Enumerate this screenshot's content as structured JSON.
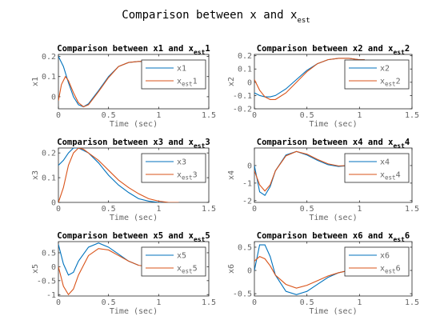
{
  "figure": {
    "suptitle": "Comparison between x and x",
    "suptitle_sub": "est",
    "colors": {
      "x": "#0072BD",
      "x_est": "#D95319",
      "axis": "#262626"
    }
  },
  "chart_data": [
    {
      "type": "line",
      "title": "Comparison between x1 and x",
      "title_sub": "est",
      "title_suffix": "1",
      "xlabel": "Time (sec)",
      "ylabel": "x1",
      "xlim": [
        0,
        1.5
      ],
      "ylim": [
        -0.06,
        0.21
      ],
      "xticks": [
        0,
        0.5,
        1,
        1.5
      ],
      "xtick_labels": [
        "0",
        "0.5",
        "1",
        "1.5"
      ],
      "yticks": [
        0,
        0.1,
        0.2
      ],
      "ytick_labels": [
        "0",
        "0.1",
        "0.2"
      ],
      "grid": false,
      "legend": {
        "location": "top-right",
        "entries": [
          {
            "text": "x1"
          },
          {
            "text": "x",
            "sub": "est",
            "suffix": "1"
          }
        ]
      },
      "series": [
        {
          "name": "x1",
          "x": [
            0,
            0.05,
            0.1,
            0.15,
            0.2,
            0.25,
            0.3,
            0.4,
            0.5,
            0.6,
            0.7,
            0.8,
            0.9,
            1.0,
            1.05
          ],
          "y": [
            0.2,
            0.15,
            0.07,
            0.0,
            -0.04,
            -0.05,
            -0.035,
            0.03,
            0.1,
            0.15,
            0.17,
            0.175,
            0.175,
            0.175,
            0.175
          ]
        },
        {
          "name": "x_est1",
          "x": [
            0,
            0.03,
            0.07,
            0.1,
            0.15,
            0.2,
            0.25,
            0.3,
            0.4,
            0.5,
            0.6,
            0.7,
            0.8,
            0.9,
            1.0,
            1.05
          ],
          "y": [
            -0.02,
            0.06,
            0.1,
            0.08,
            0.02,
            -0.03,
            -0.05,
            -0.04,
            0.025,
            0.095,
            0.15,
            0.17,
            0.175,
            0.175,
            0.175,
            0.175
          ]
        }
      ]
    },
    {
      "type": "line",
      "title": "Comparison between x2 and x",
      "title_sub": "est",
      "title_suffix": "2",
      "xlabel": "Time (sec)",
      "ylabel": "x2",
      "xlim": [
        0,
        1.5
      ],
      "ylim": [
        -0.2,
        0.21
      ],
      "xticks": [
        0,
        0.5,
        1,
        1.5
      ],
      "xtick_labels": [
        "0",
        "0.5",
        "1",
        "1.5"
      ],
      "yticks": [
        -0.2,
        -0.1,
        0,
        0.1,
        0.2
      ],
      "ytick_labels": [
        "-0.2",
        "-0.1",
        "0",
        "0.1",
        "0.2"
      ],
      "grid": false,
      "legend": {
        "location": "top-right",
        "entries": [
          {
            "text": "x2"
          },
          {
            "text": "x",
            "sub": "est",
            "suffix": "2"
          }
        ]
      },
      "series": [
        {
          "name": "x2",
          "x": [
            0,
            0.05,
            0.1,
            0.15,
            0.2,
            0.3,
            0.4,
            0.5,
            0.6,
            0.7,
            0.8,
            0.9,
            1.0,
            1.05
          ],
          "y": [
            -0.08,
            -0.1,
            -0.11,
            -0.11,
            -0.1,
            -0.05,
            0.02,
            0.09,
            0.14,
            0.17,
            0.18,
            0.18,
            0.17,
            0.17
          ]
        },
        {
          "name": "x_est2",
          "x": [
            0,
            0.05,
            0.1,
            0.15,
            0.2,
            0.3,
            0.4,
            0.5,
            0.6,
            0.7,
            0.8,
            0.9,
            1.0,
            1.05
          ],
          "y": [
            0.02,
            -0.06,
            -0.11,
            -0.13,
            -0.13,
            -0.08,
            0.0,
            0.08,
            0.14,
            0.17,
            0.18,
            0.18,
            0.17,
            0.17
          ]
        }
      ]
    },
    {
      "type": "line",
      "title": "Comparison between x3 and x",
      "title_sub": "est",
      "title_suffix": "3",
      "xlabel": "Time (sec)",
      "ylabel": "x3",
      "xlim": [
        0,
        1.5
      ],
      "ylim": [
        0,
        0.22
      ],
      "xticks": [
        0,
        0.5,
        1,
        1.5
      ],
      "xtick_labels": [
        "0",
        "0.5",
        "1",
        "1.5"
      ],
      "yticks": [
        0,
        0.1,
        0.2
      ],
      "ytick_labels": [
        "0",
        "0.1",
        "0.2"
      ],
      "grid": false,
      "legend": {
        "location": "top-right",
        "entries": [
          {
            "text": "x3"
          },
          {
            "text": "x",
            "sub": "est",
            "suffix": "3"
          }
        ]
      },
      "series": [
        {
          "name": "x3",
          "x": [
            0,
            0.05,
            0.1,
            0.15,
            0.2,
            0.3,
            0.4,
            0.5,
            0.6,
            0.7,
            0.8,
            0.9,
            1.0,
            1.1
          ],
          "y": [
            0.15,
            0.17,
            0.2,
            0.22,
            0.22,
            0.2,
            0.16,
            0.11,
            0.07,
            0.04,
            0.015,
            0.005,
            0.0,
            0.0
          ]
        },
        {
          "name": "x_est3",
          "x": [
            0,
            0.05,
            0.1,
            0.15,
            0.2,
            0.25,
            0.3,
            0.4,
            0.5,
            0.6,
            0.7,
            0.8,
            0.9,
            1.0,
            1.1,
            1.2
          ],
          "y": [
            0.0,
            0.06,
            0.15,
            0.2,
            0.22,
            0.215,
            0.2,
            0.17,
            0.13,
            0.09,
            0.06,
            0.035,
            0.015,
            0.005,
            0.0,
            0.0
          ]
        }
      ]
    },
    {
      "type": "line",
      "title": "Comparison between x4 and x",
      "title_sub": "est",
      "title_suffix": "4",
      "xlabel": "Time (sec)",
      "ylabel": "x4",
      "xlim": [
        0,
        1.5
      ],
      "ylim": [
        -2.1,
        1.0
      ],
      "xticks": [
        0,
        0.5,
        1,
        1.5
      ],
      "xtick_labels": [
        "0",
        "0.5",
        "1",
        "1.5"
      ],
      "yticks": [
        -2,
        -1,
        0
      ],
      "ytick_labels": [
        "-2",
        "-1",
        "0"
      ],
      "grid": false,
      "legend": {
        "location": "top-right",
        "entries": [
          {
            "text": "x4"
          },
          {
            "text": "x",
            "sub": "est",
            "suffix": "4"
          }
        ]
      },
      "series": [
        {
          "name": "x4",
          "x": [
            0,
            0.05,
            0.1,
            0.15,
            0.2,
            0.3,
            0.4,
            0.5,
            0.6,
            0.7,
            0.8,
            0.9,
            1.0,
            1.05
          ],
          "y": [
            0.0,
            -1.5,
            -1.7,
            -1.2,
            -0.3,
            0.6,
            0.8,
            0.6,
            0.3,
            0.05,
            -0.05,
            0.0,
            0.0,
            0.0
          ]
        },
        {
          "name": "x_est4",
          "x": [
            0,
            0.05,
            0.1,
            0.15,
            0.2,
            0.3,
            0.4,
            0.5,
            0.6,
            0.7,
            0.8,
            0.9,
            1.0,
            1.05
          ],
          "y": [
            -0.3,
            -1.1,
            -1.45,
            -1.1,
            -0.3,
            0.55,
            0.8,
            0.65,
            0.35,
            0.1,
            -0.02,
            0.0,
            0.0,
            0.0
          ]
        }
      ]
    },
    {
      "type": "line",
      "title": "Comparison between x5 and x",
      "title_sub": "est",
      "title_suffix": "5",
      "xlabel": "Time (sec)",
      "ylabel": "x5",
      "xlim": [
        0,
        1.5
      ],
      "ylim": [
        -1.05,
        0.9
      ],
      "xticks": [
        0,
        0.5,
        1,
        1.5
      ],
      "xtick_labels": [
        "0",
        "0.5",
        "1",
        "1.5"
      ],
      "yticks": [
        -1,
        -0.5,
        0,
        0.5
      ],
      "ytick_labels": [
        "-1",
        "-0.5",
        "0",
        "0.5"
      ],
      "grid": false,
      "legend": {
        "location": "top-right",
        "entries": [
          {
            "text": "x5"
          },
          {
            "text": "x",
            "sub": "est",
            "suffix": "5"
          }
        ]
      },
      "series": [
        {
          "name": "x5",
          "x": [
            0,
            0.05,
            0.1,
            0.15,
            0.2,
            0.3,
            0.4,
            0.5,
            0.6,
            0.7,
            0.8
          ],
          "y": [
            0.8,
            0.1,
            -0.3,
            -0.2,
            0.2,
            0.7,
            0.85,
            0.7,
            0.45,
            0.2,
            0.05
          ]
        },
        {
          "name": "x_est5",
          "x": [
            0,
            0.05,
            0.1,
            0.15,
            0.2,
            0.3,
            0.4,
            0.5,
            0.6,
            0.7,
            0.8,
            0.9,
            1.0,
            1.05
          ],
          "y": [
            0.0,
            -0.7,
            -1.0,
            -0.8,
            -0.3,
            0.4,
            0.65,
            0.6,
            0.4,
            0.2,
            0.05,
            0.0,
            0.0,
            0.0
          ]
        }
      ]
    },
    {
      "type": "line",
      "title": "Comparison between x6 and x",
      "title_sub": "est",
      "title_suffix": "6",
      "xlabel": "Time (sec)",
      "ylabel": "x6",
      "xlim": [
        0,
        1.5
      ],
      "ylim": [
        -0.55,
        0.62
      ],
      "xticks": [
        0,
        0.5,
        1,
        1.5
      ],
      "xtick_labels": [
        "0",
        "0.5",
        "1",
        "1.5"
      ],
      "yticks": [
        -0.5,
        0,
        0.5
      ],
      "ytick_labels": [
        "-0.5",
        "0",
        "0.5"
      ],
      "grid": false,
      "legend": {
        "location": "top-right",
        "entries": [
          {
            "text": "x6"
          },
          {
            "text": "x",
            "sub": "est",
            "suffix": "6"
          }
        ]
      },
      "series": [
        {
          "name": "x6",
          "x": [
            0,
            0.05,
            0.1,
            0.15,
            0.2,
            0.3,
            0.4,
            0.5,
            0.6,
            0.7,
            0.8,
            0.9,
            1.0,
            1.05
          ],
          "y": [
            0.0,
            0.55,
            0.55,
            0.3,
            -0.1,
            -0.45,
            -0.52,
            -0.45,
            -0.3,
            -0.15,
            -0.05,
            0.0,
            0.0,
            0.0
          ]
        },
        {
          "name": "x_est6",
          "x": [
            0,
            0.05,
            0.1,
            0.15,
            0.2,
            0.3,
            0.4,
            0.5,
            0.6,
            0.7,
            0.8,
            0.9,
            1.0,
            1.05
          ],
          "y": [
            0.2,
            0.3,
            0.25,
            0.1,
            -0.1,
            -0.3,
            -0.38,
            -0.32,
            -0.22,
            -0.12,
            -0.05,
            0.0,
            0.0,
            0.0
          ]
        }
      ]
    }
  ]
}
